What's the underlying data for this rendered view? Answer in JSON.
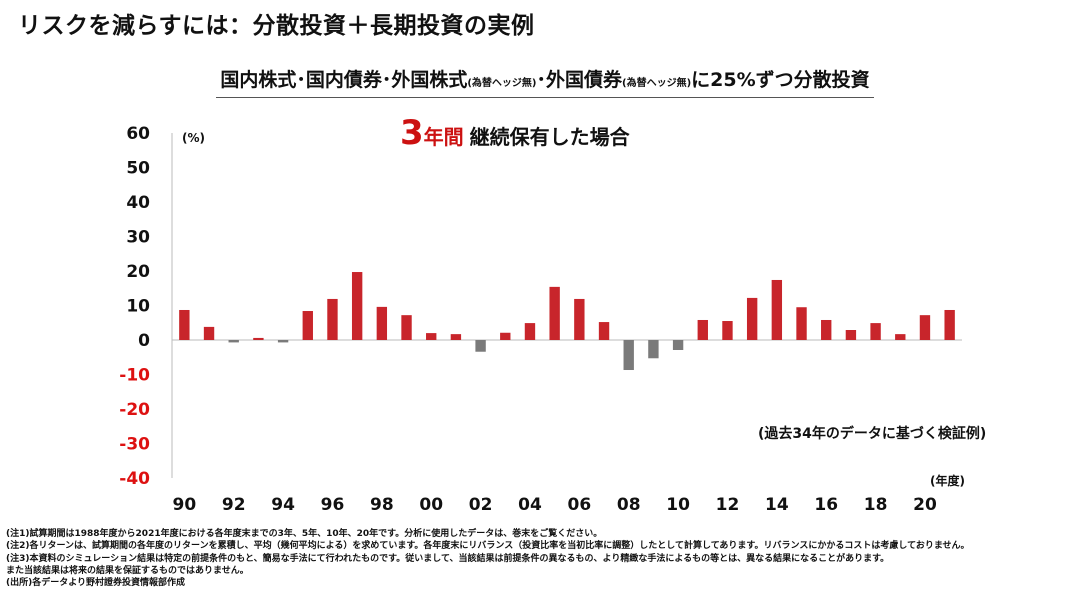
{
  "title": "リスクを減らすには：分散投資＋長期投資の実例",
  "subtitle": {
    "p1": "国内株式･国内債券･外国株式",
    "p2": "(為替ヘッジ無)",
    "p3": "･外国債券",
    "p4": "(為替ヘッジ無)",
    "p5": "に25%ずつ分散投資"
  },
  "headline": {
    "num": "3",
    "unit": "年間",
    "rest": "継続保有した場合"
  },
  "note": "(過去34年のデータに基づく検証例)",
  "footnotes": [
    "(注1)試算期間は1988年度から2021年度における各年度末までの3年、5年、10年、20年です。分析に使用したデータは、巻末をご覧ください。",
    "(注2)各リターンは、試算期間の各年度のリターンを累積し、平均（幾何平均による）を求めています。各年度末にリバランス（投資比率を当初比率に調整）したとして計算してあります。リバランスにかかるコストは考慮しておりません。",
    "(注3)本資料のシミュレーション結果は特定の前提条件のもと、簡易な手法にて行われたものです。従いまして、当該結果は前提条件の異なるもの、より精緻な手法によるもの等とは、異なる結果になることがあります。",
    "また当該結果は将来の結果を保証するものではありません。",
    "(出所)各データより野村證券投資情報部作成"
  ],
  "chart_data": {
    "type": "bar",
    "y_unit": "(%)",
    "x_unit": "(年度)",
    "ylim": [
      -40,
      60
    ],
    "yticks": [
      "60",
      "50",
      "40",
      "30",
      "20",
      "10",
      "0",
      "-10",
      "-20",
      "-30",
      "-40"
    ],
    "categories": [
      "90",
      "91",
      "92",
      "93",
      "94",
      "95",
      "96",
      "97",
      "98",
      "99",
      "00",
      "01",
      "02",
      "03",
      "04",
      "05",
      "06",
      "07",
      "08",
      "09",
      "10",
      "11",
      "12",
      "13",
      "14",
      "15",
      "16",
      "17",
      "18",
      "19",
      "20",
      "21"
    ],
    "x_tick_labels": [
      "90",
      "92",
      "94",
      "96",
      "98",
      "00",
      "02",
      "04",
      "06",
      "08",
      "10",
      "12",
      "14",
      "16",
      "18",
      "20"
    ],
    "values": [
      8.7,
      3.8,
      -0.7,
      0.6,
      -0.7,
      8.4,
      11.9,
      19.7,
      9.6,
      7.2,
      2.0,
      1.7,
      -3.4,
      2.1,
      4.9,
      15.4,
      11.9,
      5.2,
      -8.7,
      -5.3,
      -2.9,
      5.8,
      5.5,
      12.2,
      17.4,
      9.5,
      5.8,
      2.9,
      4.9,
      1.7,
      7.2,
      8.7
    ],
    "colors": {
      "positive": "#c8252b",
      "negative": "#7a7a7a",
      "pos_label": "#111111",
      "neg_label": "#dd1111"
    },
    "grid": false
  }
}
